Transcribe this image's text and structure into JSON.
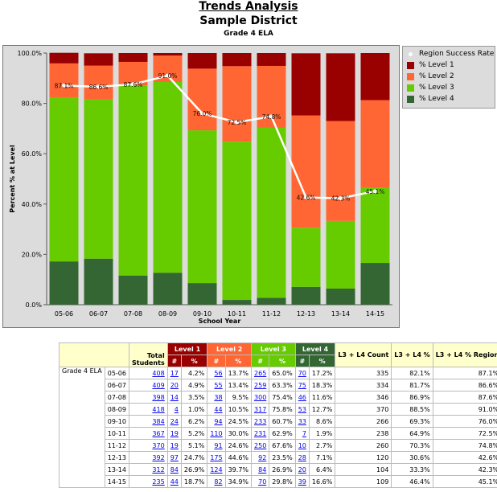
{
  "header": {
    "title": "Trends Analysis",
    "district": "Sample District",
    "subtitle": "Grade 4 ELA"
  },
  "colors": {
    "level1": "#990000",
    "level2": "#ff6633",
    "level3": "#66cc00",
    "level4": "#336633",
    "plot_bg": "#dcdcdc",
    "line": "#ffffff"
  },
  "chart_data": {
    "type": "bar",
    "stacked": true,
    "categories": [
      "05-06",
      "06-07",
      "07-08",
      "08-09",
      "09-10",
      "10-11",
      "11-12",
      "12-13",
      "13-14",
      "14-15"
    ],
    "series": [
      {
        "name": "% Level 4",
        "values": [
          17.2,
          18.3,
          11.6,
          12.7,
          8.6,
          1.9,
          2.7,
          7.1,
          6.4,
          16.6
        ]
      },
      {
        "name": "% Level 3",
        "values": [
          65.0,
          63.3,
          75.4,
          75.8,
          60.7,
          62.9,
          67.6,
          23.5,
          26.9,
          29.8
        ]
      },
      {
        "name": "% Level 2",
        "values": [
          13.7,
          13.4,
          9.5,
          10.5,
          24.5,
          30.0,
          24.6,
          44.6,
          39.7,
          34.9
        ]
      },
      {
        "name": "% Level 1",
        "values": [
          4.2,
          4.9,
          3.5,
          1.0,
          6.2,
          5.2,
          5.1,
          24.7,
          26.9,
          18.7
        ]
      }
    ],
    "line_series": {
      "name": "Region Success Rate",
      "values": [
        87.1,
        86.6,
        87.6,
        91.0,
        76.0,
        72.5,
        74.8,
        42.6,
        42.3,
        45.1
      ],
      "labels": [
        "87.1%",
        "86.6%",
        "87.6%",
        "91.0%",
        "76.0%",
        "72.5%",
        "74.8%",
        "42.6%",
        "42.3%",
        "45.1%"
      ]
    },
    "xlabel": "School Year",
    "ylabel": "Percent % at Level",
    "ylim": [
      0,
      100
    ],
    "yticks": [
      "0.0%",
      "20.0%",
      "40.0%",
      "60.0%",
      "80.0%",
      "100.0%"
    ],
    "grid": false,
    "legend_position": "right"
  },
  "legend": {
    "items": [
      {
        "label": "Region Success Rate",
        "kind": "dot",
        "color": "#ffffff"
      },
      {
        "label": "% Level 1",
        "kind": "box",
        "color": "#990000"
      },
      {
        "label": "% Level 2",
        "kind": "box",
        "color": "#ff6633"
      },
      {
        "label": "% Level 3",
        "kind": "box",
        "color": "#66cc00"
      },
      {
        "label": "% Level 4",
        "kind": "box",
        "color": "#336633"
      }
    ]
  },
  "table": {
    "total_students_label": "Total Students",
    "level_headers": [
      "Level 1",
      "Level 2",
      "Level 3",
      "Level 4"
    ],
    "sub_hash": "#",
    "sub_pct": "%",
    "col_l3l4_count": "L3 + L4 Count",
    "col_l3l4_pct": "L3 + L4 %",
    "col_l3l4_region": "L3 + L4 % Region",
    "group_label": "Grade 4 ELA",
    "rows": [
      {
        "year": "05-06",
        "total": "408",
        "l1n": "17",
        "l1p": "4.2%",
        "l2n": "56",
        "l2p": "13.7%",
        "l3n": "265",
        "l3p": "65.0%",
        "l4n": "70",
        "l4p": "17.2%",
        "cnt": "335",
        "pct": "82.1%",
        "reg": "87.1%"
      },
      {
        "year": "06-07",
        "total": "409",
        "l1n": "20",
        "l1p": "4.9%",
        "l2n": "55",
        "l2p": "13.4%",
        "l3n": "259",
        "l3p": "63.3%",
        "l4n": "75",
        "l4p": "18.3%",
        "cnt": "334",
        "pct": "81.7%",
        "reg": "86.6%"
      },
      {
        "year": "07-08",
        "total": "398",
        "l1n": "14",
        "l1p": "3.5%",
        "l2n": "38",
        "l2p": "9.5%",
        "l3n": "300",
        "l3p": "75.4%",
        "l4n": "46",
        "l4p": "11.6%",
        "cnt": "346",
        "pct": "86.9%",
        "reg": "87.6%"
      },
      {
        "year": "08-09",
        "total": "418",
        "l1n": "4",
        "l1p": "1.0%",
        "l2n": "44",
        "l2p": "10.5%",
        "l3n": "317",
        "l3p": "75.8%",
        "l4n": "53",
        "l4p": "12.7%",
        "cnt": "370",
        "pct": "88.5%",
        "reg": "91.0%"
      },
      {
        "year": "09-10",
        "total": "384",
        "l1n": "24",
        "l1p": "6.2%",
        "l2n": "94",
        "l2p": "24.5%",
        "l3n": "233",
        "l3p": "60.7%",
        "l4n": "33",
        "l4p": "8.6%",
        "cnt": "266",
        "pct": "69.3%",
        "reg": "76.0%"
      },
      {
        "year": "10-11",
        "total": "367",
        "l1n": "19",
        "l1p": "5.2%",
        "l2n": "110",
        "l2p": "30.0%",
        "l3n": "231",
        "l3p": "62.9%",
        "l4n": "7",
        "l4p": "1.9%",
        "cnt": "238",
        "pct": "64.9%",
        "reg": "72.5%"
      },
      {
        "year": "11-12",
        "total": "370",
        "l1n": "19",
        "l1p": "5.1%",
        "l2n": "91",
        "l2p": "24.6%",
        "l3n": "250",
        "l3p": "67.6%",
        "l4n": "10",
        "l4p": "2.7%",
        "cnt": "260",
        "pct": "70.3%",
        "reg": "74.8%"
      },
      {
        "year": "12-13",
        "total": "392",
        "l1n": "97",
        "l1p": "24.7%",
        "l2n": "175",
        "l2p": "44.6%",
        "l3n": "92",
        "l3p": "23.5%",
        "l4n": "28",
        "l4p": "7.1%",
        "cnt": "120",
        "pct": "30.6%",
        "reg": "42.6%"
      },
      {
        "year": "13-14",
        "total": "312",
        "l1n": "84",
        "l1p": "26.9%",
        "l2n": "124",
        "l2p": "39.7%",
        "l3n": "84",
        "l3p": "26.9%",
        "l4n": "20",
        "l4p": "6.4%",
        "cnt": "104",
        "pct": "33.3%",
        "reg": "42.3%"
      },
      {
        "year": "14-15",
        "total": "235",
        "l1n": "44",
        "l1p": "18.7%",
        "l2n": "82",
        "l2p": "34.9%",
        "l3n": "70",
        "l3p": "29.8%",
        "l4n": "39",
        "l4p": "16.6%",
        "cnt": "109",
        "pct": "46.4%",
        "reg": "45.1%"
      }
    ]
  }
}
